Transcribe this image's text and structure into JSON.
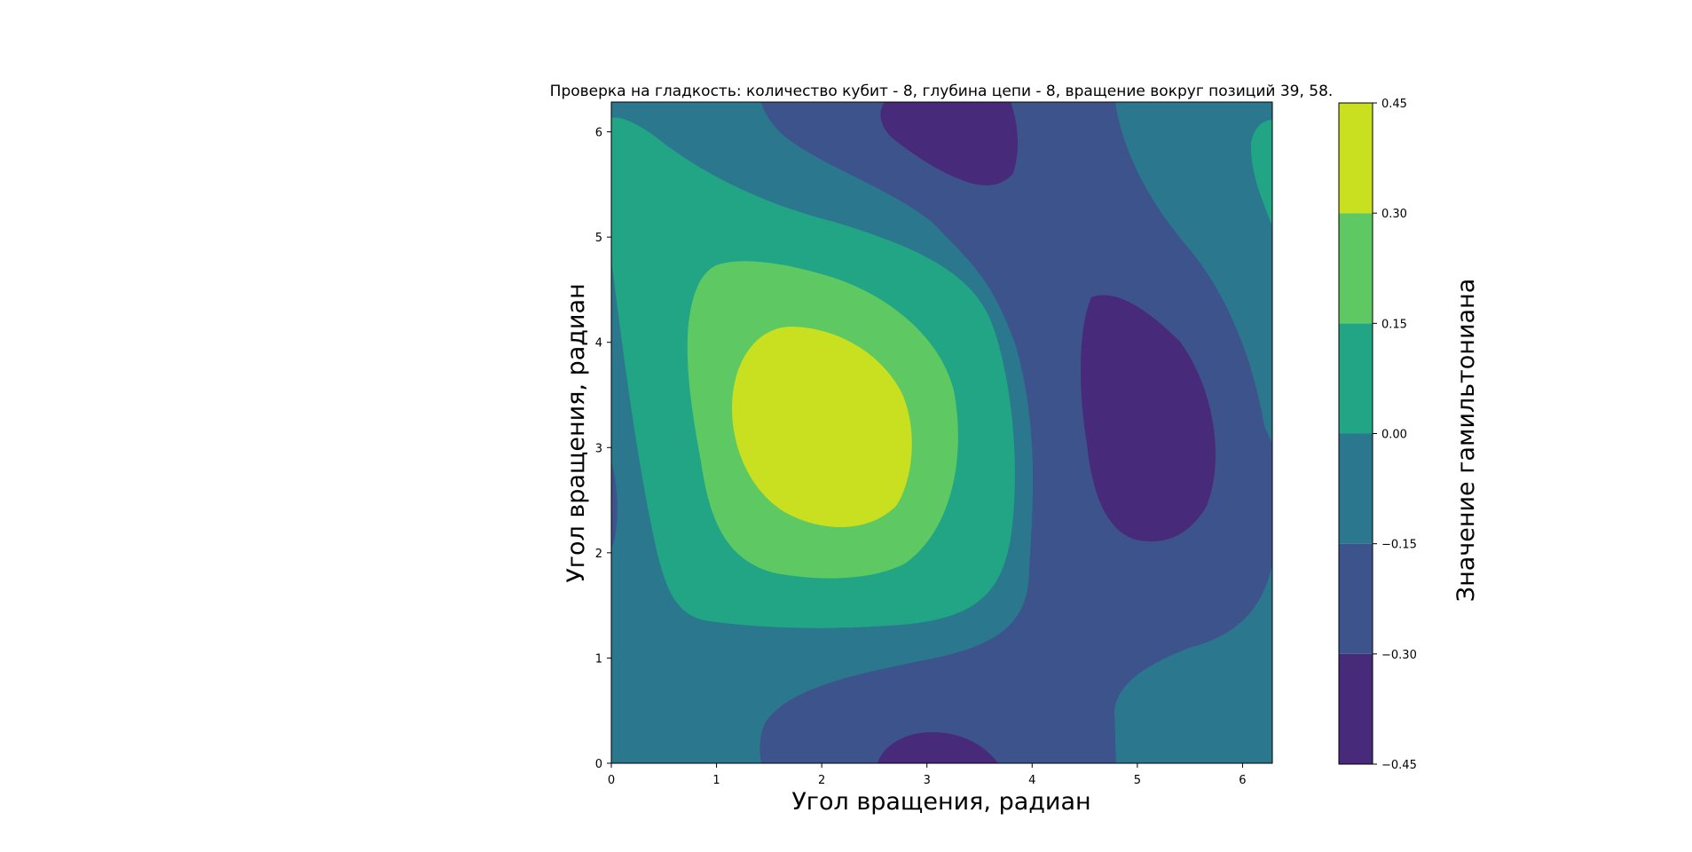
{
  "chart_data": {
    "type": "heatmap",
    "subtype": "filled-contour",
    "title": "Проверка на гладкость: количество кубит - 8, глубина цепи - 8, вращение вокруг позиций 39, 58.",
    "xlabel": "Угол вращения, радиан",
    "ylabel": "Угол вращения, радиан",
    "xlim": [
      0,
      6.283
    ],
    "ylim": [
      0,
      6.283
    ],
    "xticks": [
      0,
      1,
      2,
      3,
      4,
      5,
      6
    ],
    "yticks": [
      0,
      1,
      2,
      3,
      4,
      5,
      6
    ],
    "colorbar": {
      "label": "Значение гамильтониана",
      "levels": [
        -0.45,
        -0.3,
        -0.15,
        0.0,
        0.15,
        0.3,
        0.45
      ],
      "tick_labels": [
        "−0.45",
        "−0.30",
        "−0.15",
        "0.00",
        "0.15",
        "0.30",
        "0.45"
      ],
      "colors": [
        "#472a7a",
        "#3d538b",
        "#2b788e",
        "#21a585",
        "#5ec962",
        "#c8e020"
      ]
    },
    "features": [
      {
        "kind": "maximum",
        "x": 2.05,
        "y": 3.2,
        "value_band": [
          0.3,
          0.45
        ]
      },
      {
        "kind": "minimum",
        "x": 5.2,
        "y": 3.2,
        "value_band": [
          -0.45,
          -0.3
        ]
      },
      {
        "kind": "minimum",
        "x": 3.1,
        "y": 6.1,
        "value_band": [
          -0.45,
          -0.3
        ]
      },
      {
        "kind": "minimum",
        "x": 3.1,
        "y": 0.1,
        "value_band": [
          -0.45,
          -0.3
        ]
      },
      {
        "kind": "local-high",
        "x": 6.25,
        "y": 5.8,
        "value_band": [
          0.0,
          0.15
        ]
      }
    ]
  }
}
